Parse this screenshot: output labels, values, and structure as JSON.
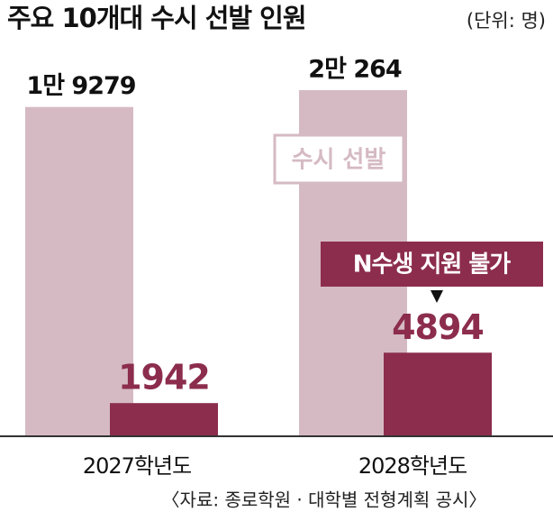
{
  "chart_data": {
    "type": "bar",
    "title": "주요 10개대 수시 선발 인원",
    "subtitle": "(단위: 명)",
    "categories": [
      "2027학년도",
      "2028학년도"
    ],
    "series": [
      {
        "name": "수시 선발",
        "color": "#d5bac3",
        "values": [
          19279,
          20264
        ],
        "value_labels": [
          "1만 9279",
          "2만 264"
        ]
      },
      {
        "name": "N수생 지원 불가",
        "color": "#8c2d4d",
        "values": [
          1942,
          4894
        ]
      }
    ],
    "source": "〈자료: 종로학원 · 대학별 전형계획 공시〉"
  }
}
